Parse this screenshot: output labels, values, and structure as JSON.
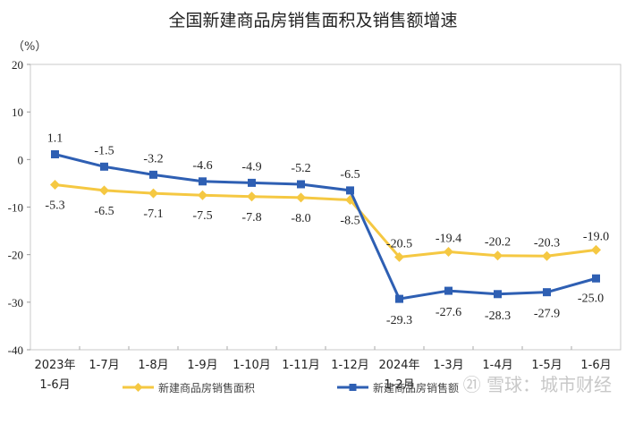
{
  "title": "全国新建商品房销售面积及销售额增速",
  "unit_label": "（%）",
  "watermark": "㉑ 雪球：城市财经",
  "colors": {
    "area": "#f5c842",
    "sales": "#2e5fb3",
    "frame": "#c8c8c8"
  },
  "chart_data": {
    "type": "line",
    "title": "全国新建商品房销售面积及销售额增速",
    "xlabel": "",
    "ylabel": "（%）",
    "ylim": [
      -40,
      20
    ],
    "yticks": [
      20,
      10,
      0,
      -10,
      -20,
      -30,
      -40
    ],
    "categories": [
      "2023年1-6月",
      "1-7月",
      "1-8月",
      "1-9月",
      "1-10月",
      "1-11月",
      "1-12月",
      "2024年1-2月",
      "1-3月",
      "1-4月",
      "1-5月",
      "1-6月"
    ],
    "category_lines": [
      [
        "2023年",
        "1-6月"
      ],
      [
        "1-7月"
      ],
      [
        "1-8月"
      ],
      [
        "1-9月"
      ],
      [
        "1-10月"
      ],
      [
        "1-11月"
      ],
      [
        "1-12月"
      ],
      [
        "2024年",
        "1-2月"
      ],
      [
        "1-3月"
      ],
      [
        "1-4月"
      ],
      [
        "1-5月"
      ],
      [
        "1-6月"
      ]
    ],
    "series": [
      {
        "name": "新建商品房销售面积",
        "color": "#f5c842",
        "marker": "diamond",
        "values": [
          -5.3,
          -6.5,
          -7.1,
          -7.5,
          -7.8,
          -8.0,
          -8.5,
          -20.5,
          -19.4,
          -20.2,
          -20.3,
          -19.0
        ]
      },
      {
        "name": "新建商品房销售额",
        "color": "#2e5fb3",
        "marker": "square",
        "values": [
          1.1,
          -1.5,
          -3.2,
          -4.6,
          -4.9,
          -5.2,
          -6.5,
          -29.3,
          -27.6,
          -28.3,
          -27.9,
          -25.0
        ]
      }
    ],
    "grid": false,
    "legend_position": "bottom"
  }
}
